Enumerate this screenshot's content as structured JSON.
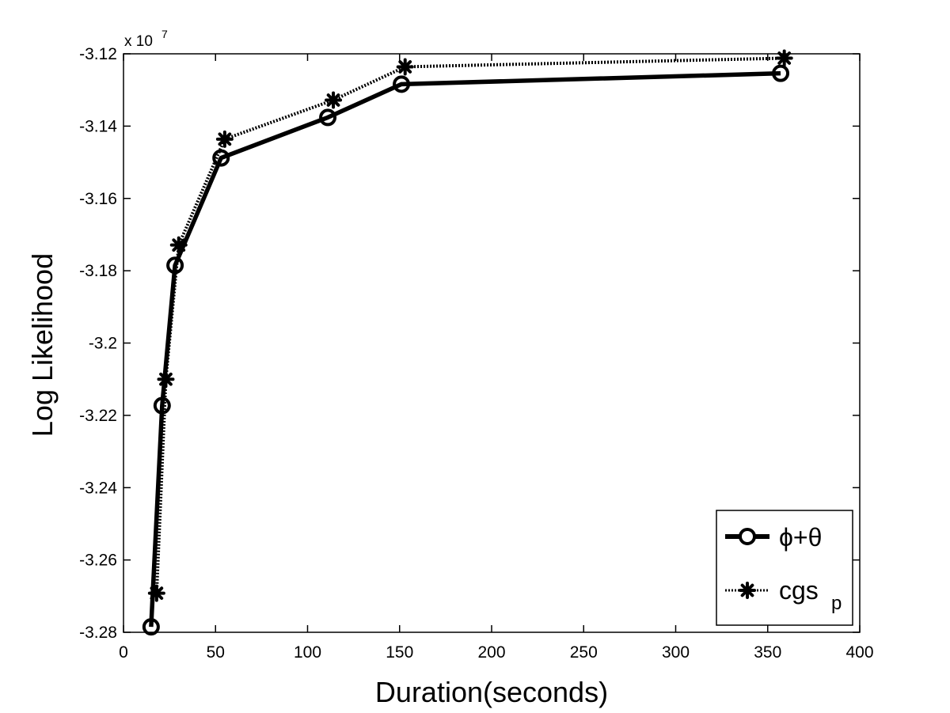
{
  "chart_data": {
    "type": "line",
    "xlabel": "Duration(seconds)",
    "ylabel": "Log Likelihood",
    "xlim": [
      0,
      400
    ],
    "ylim": [
      -3.28,
      -3.12
    ],
    "y_scale_text": "x 10",
    "y_scale_exponent": "7",
    "x_ticks": [
      "0",
      "50",
      "100",
      "150",
      "200",
      "250",
      "300",
      "350",
      "400"
    ],
    "y_ticks": [
      "-3.28",
      "-3.26",
      "-3.24",
      "-3.22",
      "-3.2",
      "-3.18",
      "-3.16",
      "-3.14",
      "-3.12"
    ],
    "grid": false,
    "legend_position": "bottom-right",
    "series": [
      {
        "name": "ϕ+θ",
        "marker": "circle",
        "line": "solid",
        "x": [
          15,
          21,
          28,
          53,
          111,
          151,
          357
        ],
        "y": [
          -3.2785,
          -3.2173,
          -3.1785,
          -3.1488,
          -3.1376,
          -3.1284,
          -3.1254
        ]
      },
      {
        "name_main": "cgs",
        "name_sub": "p",
        "marker": "asterisk",
        "line": "dotted",
        "x": [
          18,
          23,
          30,
          55,
          114,
          153,
          359
        ],
        "y": [
          -3.2692,
          -3.21,
          -3.1729,
          -3.1436,
          -3.1328,
          -3.1236,
          -3.1212
        ]
      }
    ]
  }
}
